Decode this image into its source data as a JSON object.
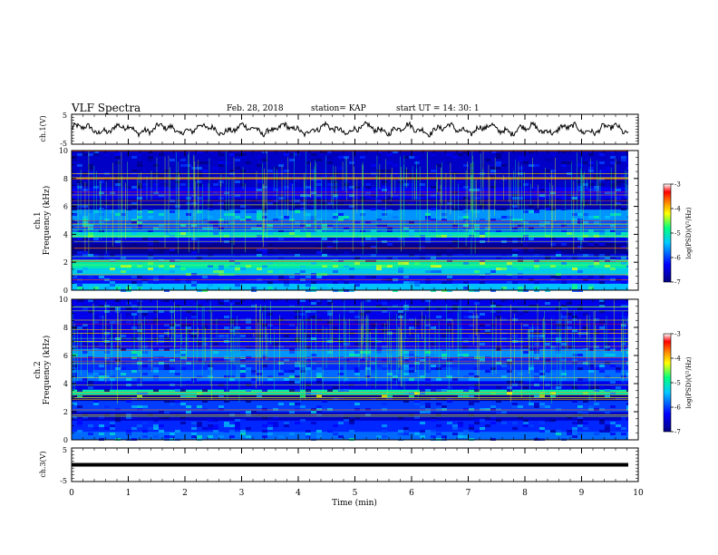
{
  "header": {
    "title": "VLF Spectra",
    "date": "Feb. 28, 2018",
    "station": "station= KAP",
    "start": "start  UT =   14: 30: 1"
  },
  "chart_data": [
    {
      "type": "line",
      "ylabel": "ch.1(V)",
      "ylim": [
        -5,
        5
      ],
      "yticks": [
        "5",
        "-5"
      ],
      "xlim": [
        0,
        10
      ],
      "description_of_signal": "noisy waveform centered near 0 V, amplitude about 1-3 V",
      "baseline": 0,
      "amplitude_approx": 2
    },
    {
      "type": "heatmap",
      "ylabel": "ch.1\nFrequency (kHz)",
      "ylim": [
        0,
        10
      ],
      "yticks": [
        "0",
        "2",
        "4",
        "6",
        "8",
        "10"
      ],
      "xlim": [
        0,
        10
      ],
      "colorbar": {
        "label": "log(PSD)(V²/Hz)",
        "range": [
          -7,
          -3
        ],
        "ticks": [
          "-3",
          "-4",
          "-5",
          "-6",
          "-7"
        ]
      },
      "bands_khz": [
        {
          "from": 0.0,
          "to": 0.5,
          "level": -5.4
        },
        {
          "from": 0.5,
          "to": 1.1,
          "level": -6.2
        },
        {
          "from": 1.1,
          "to": 1.6,
          "level": -5.3
        },
        {
          "from": 1.6,
          "to": 2.2,
          "level": -5.0
        },
        {
          "from": 2.2,
          "to": 2.6,
          "level": -6.2
        },
        {
          "from": 2.6,
          "to": 3.4,
          "level": -6.9
        },
        {
          "from": 3.4,
          "to": 3.8,
          "level": -6.4
        },
        {
          "from": 3.8,
          "to": 4.2,
          "level": -5.1
        },
        {
          "from": 4.2,
          "to": 5.0,
          "level": -5.9
        },
        {
          "from": 5.0,
          "to": 5.8,
          "level": -5.6
        },
        {
          "from": 5.8,
          "to": 6.6,
          "level": -6.7
        },
        {
          "from": 6.6,
          "to": 7.4,
          "level": -6.3
        },
        {
          "from": 7.4,
          "to": 10.0,
          "level": -6.6
        }
      ]
    },
    {
      "type": "heatmap",
      "ylabel": "ch.2\nFrequency (kHz)",
      "ylim": [
        0,
        10
      ],
      "yticks": [
        "0",
        "2",
        "4",
        "6",
        "8",
        "10"
      ],
      "xlim": [
        0,
        10
      ],
      "colorbar": {
        "label": "log(PSD)(V²/Hz)",
        "range": [
          -7,
          -3
        ],
        "ticks": [
          "-3",
          "-4",
          "-5",
          "-6",
          "-7"
        ]
      },
      "bands_khz": [
        {
          "from": 0.0,
          "to": 0.6,
          "level": -5.8
        },
        {
          "from": 0.6,
          "to": 1.4,
          "level": -6.1
        },
        {
          "from": 1.4,
          "to": 2.0,
          "level": -6.6
        },
        {
          "from": 2.0,
          "to": 2.8,
          "level": -6.0
        },
        {
          "from": 2.8,
          "to": 3.2,
          "level": -6.9
        },
        {
          "from": 3.2,
          "to": 3.6,
          "level": -5.0
        },
        {
          "from": 3.6,
          "to": 4.2,
          "level": -6.4
        },
        {
          "from": 4.2,
          "to": 5.0,
          "level": -5.8
        },
        {
          "from": 5.0,
          "to": 5.9,
          "level": -6.1
        },
        {
          "from": 5.9,
          "to": 6.5,
          "level": -5.6
        },
        {
          "from": 6.5,
          "to": 7.4,
          "level": -6.3
        },
        {
          "from": 7.4,
          "to": 10.0,
          "level": -6.4
        }
      ]
    },
    {
      "type": "line",
      "ylabel": "ch.3(V)",
      "ylim": [
        -5,
        5
      ],
      "yticks": [
        "5",
        "-5"
      ],
      "xlim": [
        0,
        10
      ],
      "baseline": 0,
      "amplitude_approx": 0,
      "xlabel": "Time (min)",
      "xticks": [
        "0",
        "1",
        "2",
        "3",
        "4",
        "5",
        "6",
        "7",
        "8",
        "9",
        "10"
      ]
    }
  ],
  "colors": {
    "background": "#ffffff",
    "axis": "#000000",
    "colormap": [
      "#000080",
      "#0000ff",
      "#00c0ff",
      "#00ff80",
      "#ffff00",
      "#ff8000",
      "#ff0000",
      "#ffffff"
    ]
  }
}
